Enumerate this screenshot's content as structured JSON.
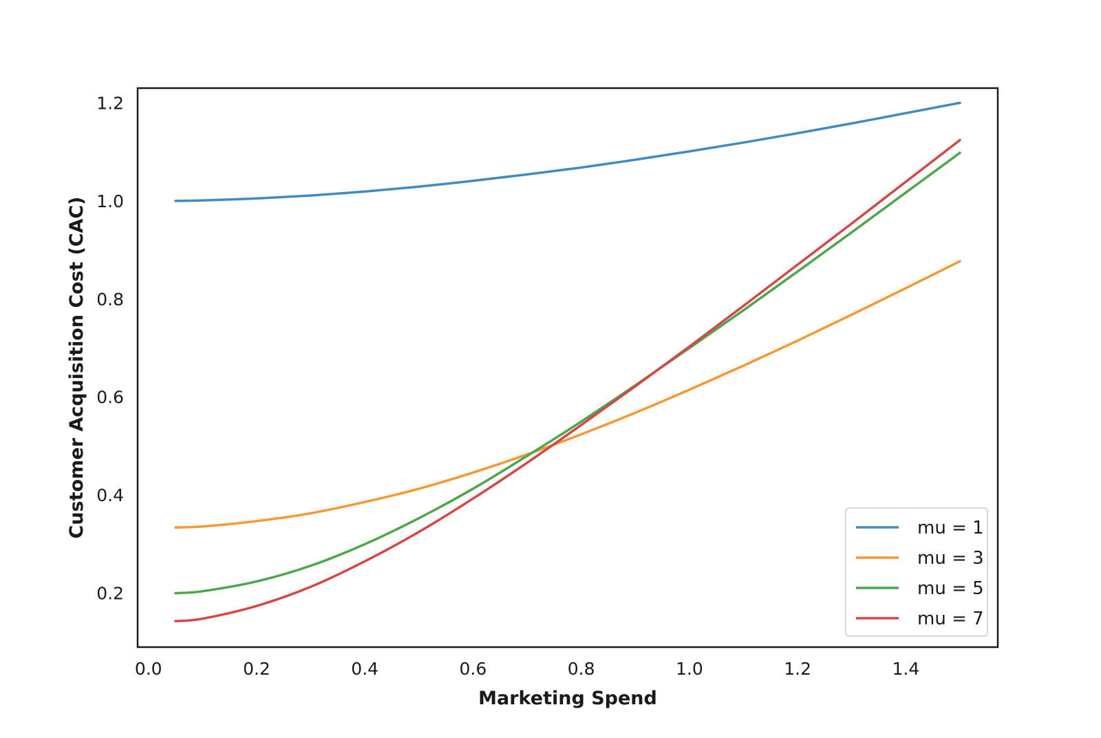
{
  "chart_data": {
    "type": "line",
    "title": "",
    "xlabel": "Marketing Spend",
    "ylabel": "Customer Acquisition Cost (CAC)",
    "xlim": [
      -0.02,
      1.57
    ],
    "ylim": [
      0.09,
      1.23
    ],
    "x_ticks": [
      0.0,
      0.2,
      0.4,
      0.6,
      0.8,
      1.0,
      1.2,
      1.4
    ],
    "x_tick_labels": [
      "0.0",
      "0.2",
      "0.4",
      "0.6",
      "0.8",
      "1.0",
      "1.2",
      "1.4"
    ],
    "y_ticks": [
      0.2,
      0.4,
      0.6,
      0.8,
      1.0,
      1.2
    ],
    "y_tick_labels": [
      "0.2",
      "0.4",
      "0.6",
      "0.8",
      "1.0",
      "1.2"
    ],
    "grid": false,
    "legend": "lower-right",
    "x": [
      0.05,
      0.1,
      0.2,
      0.3,
      0.4,
      0.5,
      0.6,
      0.7,
      0.8,
      0.9,
      1.0,
      1.1,
      1.2,
      1.3,
      1.4,
      1.5
    ],
    "series": [
      {
        "name": "mu = 1",
        "color": "#3f8bc3",
        "values": [
          1.0,
          1.001,
          1.005,
          1.011,
          1.019,
          1.029,
          1.041,
          1.054,
          1.068,
          1.084,
          1.101,
          1.119,
          1.138,
          1.158,
          1.179,
          1.2
        ]
      },
      {
        "name": "mu = 3",
        "color": "#fb972e",
        "values": [
          0.334,
          0.336,
          0.347,
          0.363,
          0.386,
          0.413,
          0.446,
          0.483,
          0.524,
          0.568,
          0.615,
          0.664,
          0.715,
          0.768,
          0.822,
          0.877
        ]
      },
      {
        "name": "mu = 5",
        "color": "#4aa84a",
        "values": [
          0.2,
          0.204,
          0.224,
          0.256,
          0.3,
          0.353,
          0.413,
          0.48,
          0.55,
          0.624,
          0.7,
          0.777,
          0.856,
          0.936,
          1.017,
          1.098
        ]
      },
      {
        "name": "mu = 7",
        "color": "#d94545",
        "values": [
          0.143,
          0.148,
          0.174,
          0.213,
          0.265,
          0.325,
          0.393,
          0.466,
          0.543,
          0.622,
          0.703,
          0.786,
          0.87,
          0.954,
          1.039,
          1.124
        ]
      }
    ]
  }
}
